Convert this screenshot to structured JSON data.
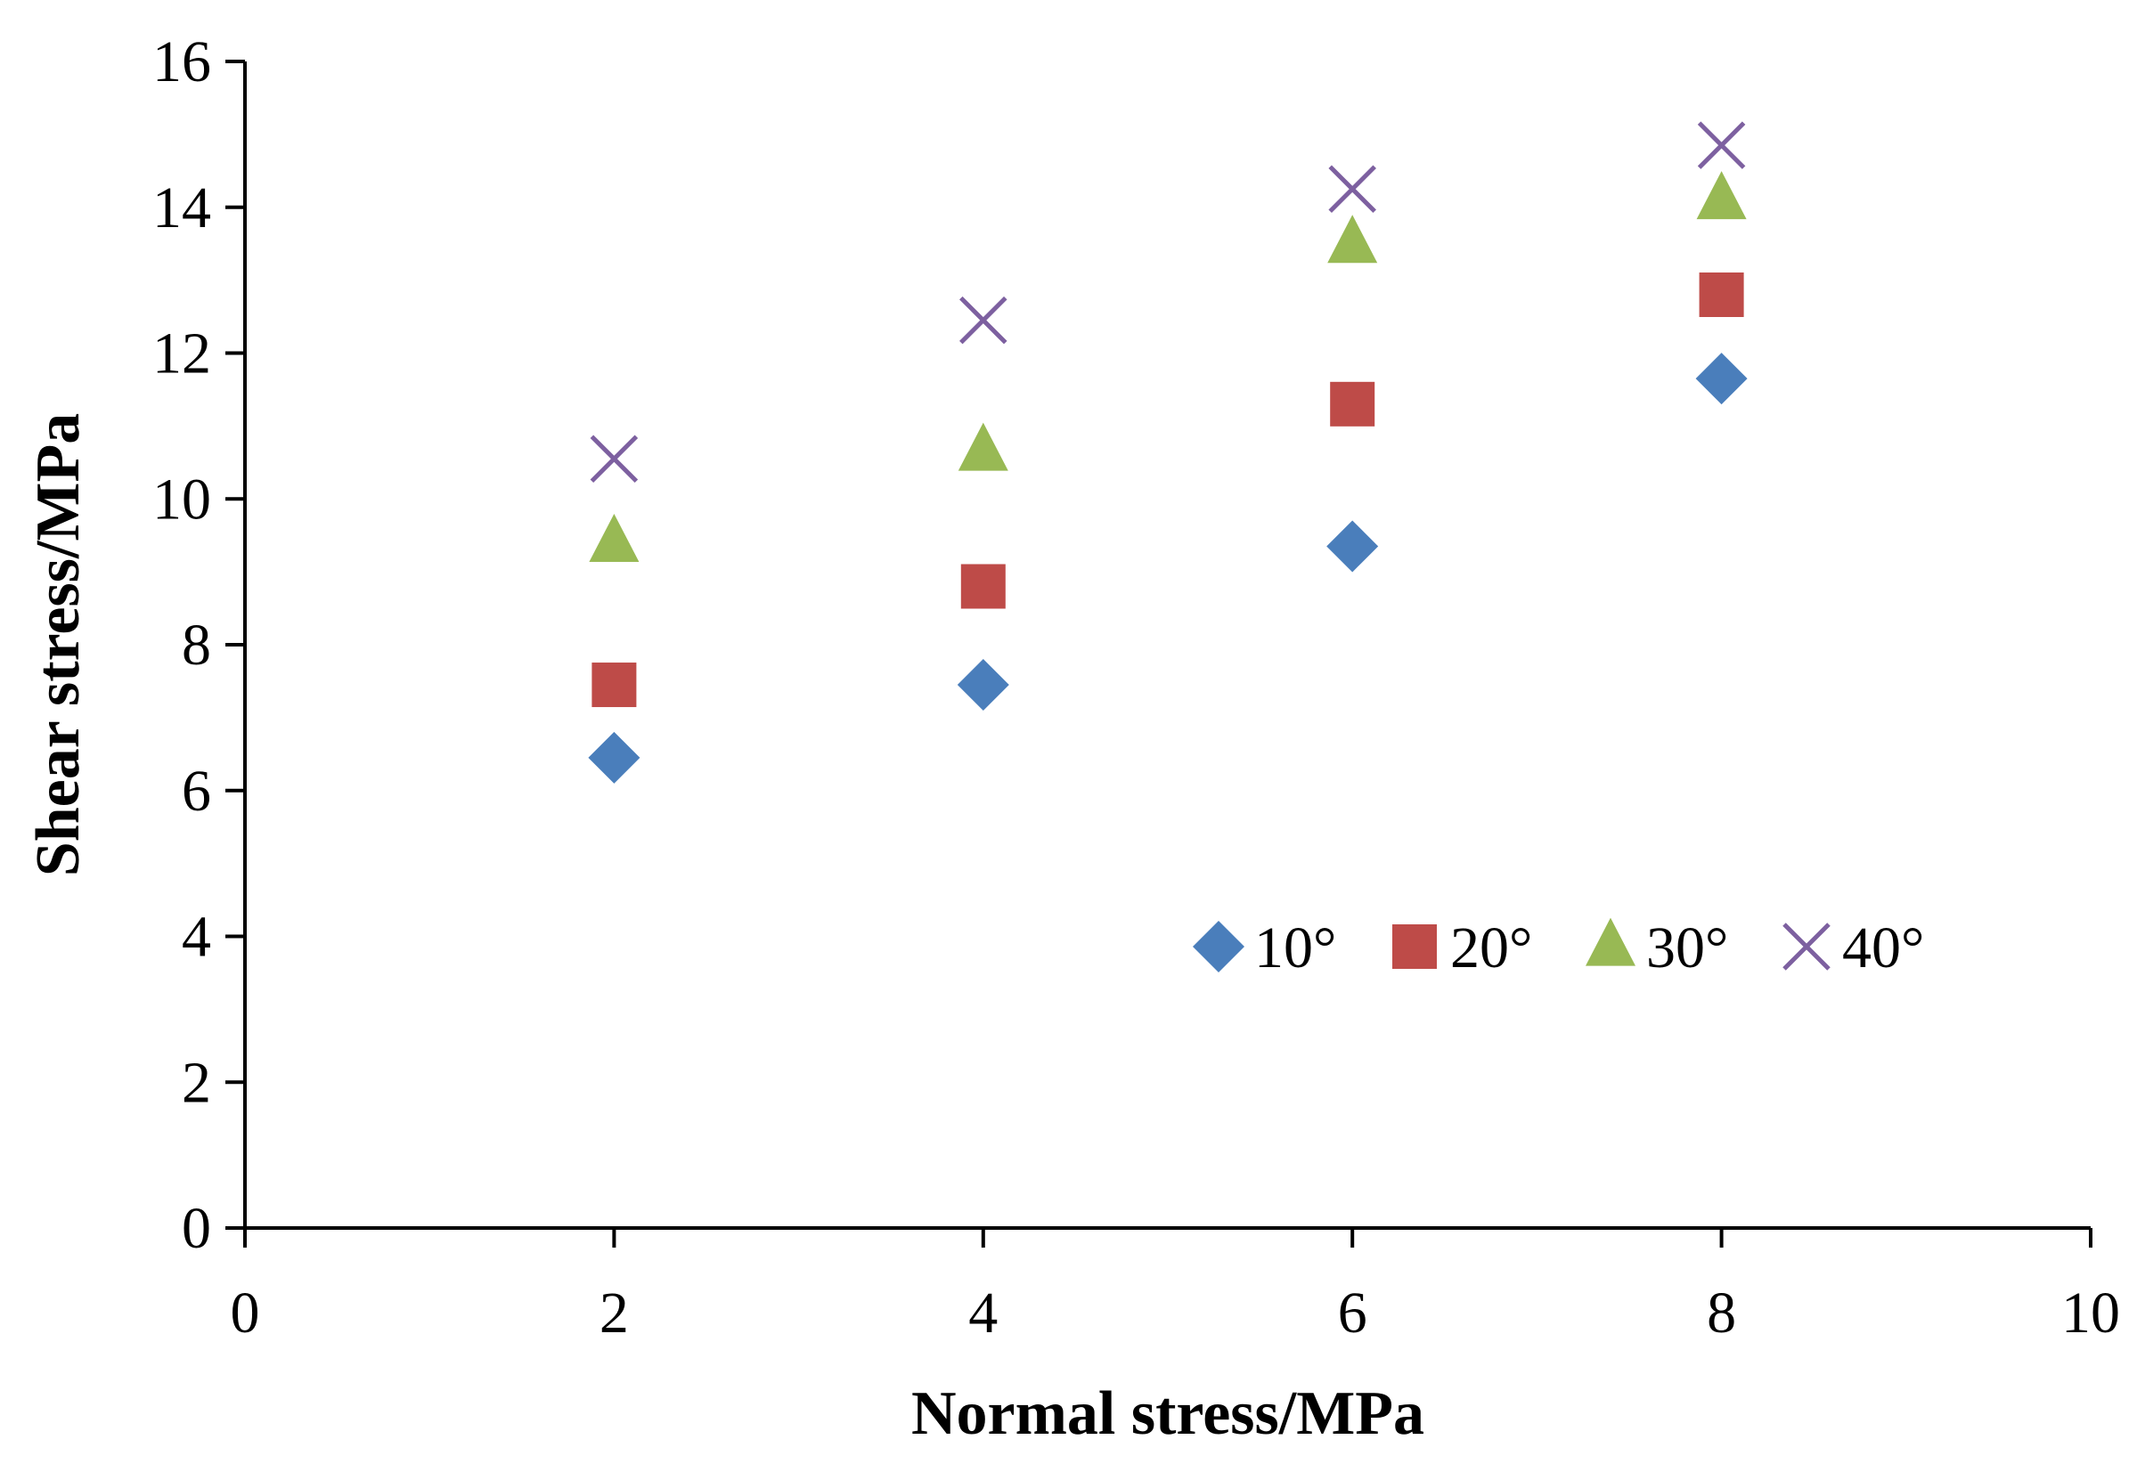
{
  "chart_data": {
    "type": "scatter",
    "title": "",
    "xlabel": "Normal stress/MPa",
    "ylabel": "Shear stress/MPa",
    "xlim": [
      0,
      10
    ],
    "ylim": [
      0,
      16
    ],
    "xticks": [
      0,
      2,
      4,
      6,
      8,
      10
    ],
    "yticks": [
      0,
      2,
      4,
      6,
      8,
      10,
      12,
      14,
      16
    ],
    "grid": false,
    "legend_position": "center-right",
    "x": [
      2,
      4,
      6,
      8
    ],
    "series": [
      {
        "name": "10°",
        "marker": "diamond",
        "color": "#4a7ebb",
        "values": [
          6.45,
          7.45,
          9.35,
          11.65
        ]
      },
      {
        "name": "20°",
        "marker": "square",
        "color": "#be4b48",
        "values": [
          7.45,
          8.8,
          11.3,
          12.8
        ]
      },
      {
        "name": "30°",
        "marker": "triangle",
        "color": "#98b954",
        "values": [
          9.4,
          10.65,
          13.5,
          14.1
        ]
      },
      {
        "name": "40°",
        "marker": "x",
        "color": "#7d60a0",
        "values": [
          10.55,
          12.45,
          14.25,
          14.85
        ]
      }
    ]
  }
}
